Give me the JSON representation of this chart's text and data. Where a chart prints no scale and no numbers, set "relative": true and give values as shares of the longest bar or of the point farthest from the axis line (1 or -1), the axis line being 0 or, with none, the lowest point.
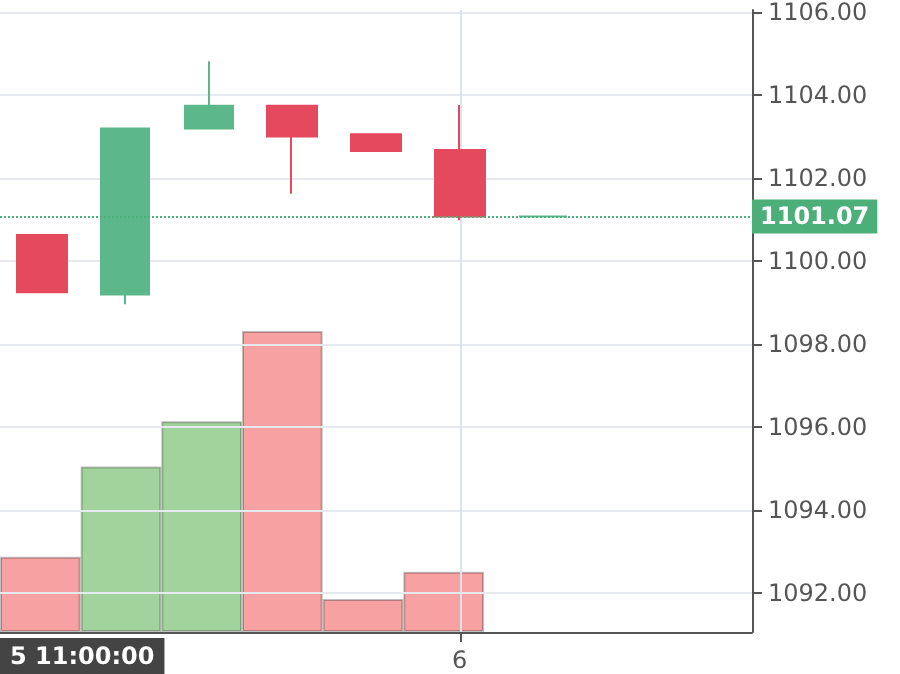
{
  "chart_data": [
    {
      "type": "candlestick",
      "categories": [
        null,
        null,
        null,
        null,
        null,
        "6",
        null,
        null,
        null
      ],
      "ohlc": [
        [
          1100.62,
          1100.62,
          1099.24,
          1099.24
        ],
        [
          1099.19,
          1103.19,
          1098.95,
          1103.19
        ],
        [
          1103.19,
          1104.81,
          1103.19,
          1103.74
        ],
        [
          1103.74,
          1103.74,
          1101.62,
          1103.0
        ],
        [
          1103.05,
          1103.05,
          1102.65,
          1102.65
        ],
        [
          1102.67,
          1103.76,
          1100.98,
          1101.07
        ],
        [
          1101.07,
          1101.07,
          1101.07,
          1101.07
        ],
        null,
        null
      ],
      "colors": [
        "#e5495d",
        "#5cb88a",
        "#5cb88a",
        "#e5495d",
        "#e5495d",
        "#e5495d",
        "#5cb88a",
        null,
        null
      ],
      "ylim": [
        1091.05,
        1106.05
      ],
      "yticks": [
        {
          "value": 1092,
          "label": "1092.00"
        },
        {
          "value": 1094,
          "label": "1094.00"
        },
        {
          "value": 1096,
          "label": "1096.00"
        },
        {
          "value": 1098,
          "label": "1098.00"
        },
        {
          "value": 1100,
          "label": "1100.00"
        },
        {
          "value": 1102,
          "label": "1102.00"
        },
        {
          "value": 1104,
          "label": "1104.00"
        },
        {
          "value": 1106,
          "label": "1106.00"
        }
      ],
      "ref_lines": [
        {
          "axis": "y",
          "value": 1101.07,
          "label": "1101.07",
          "color": "#4caf7a",
          "line_style": "dotted"
        }
      ],
      "annotations": [
        "5 11:00:00"
      ],
      "grid": true
    },
    {
      "type": "bar",
      "relative": true,
      "categories": [
        null,
        null,
        null,
        null,
        null,
        null
      ],
      "values": [
        0.25,
        0.55,
        0.7,
        1,
        0.11,
        0.2
      ],
      "colors": [
        "#f7a1a3",
        "#a3d39c",
        "#a3d39c",
        "#f7a1a3",
        "#f7a1a3",
        "#f7a1a3"
      ]
    }
  ]
}
